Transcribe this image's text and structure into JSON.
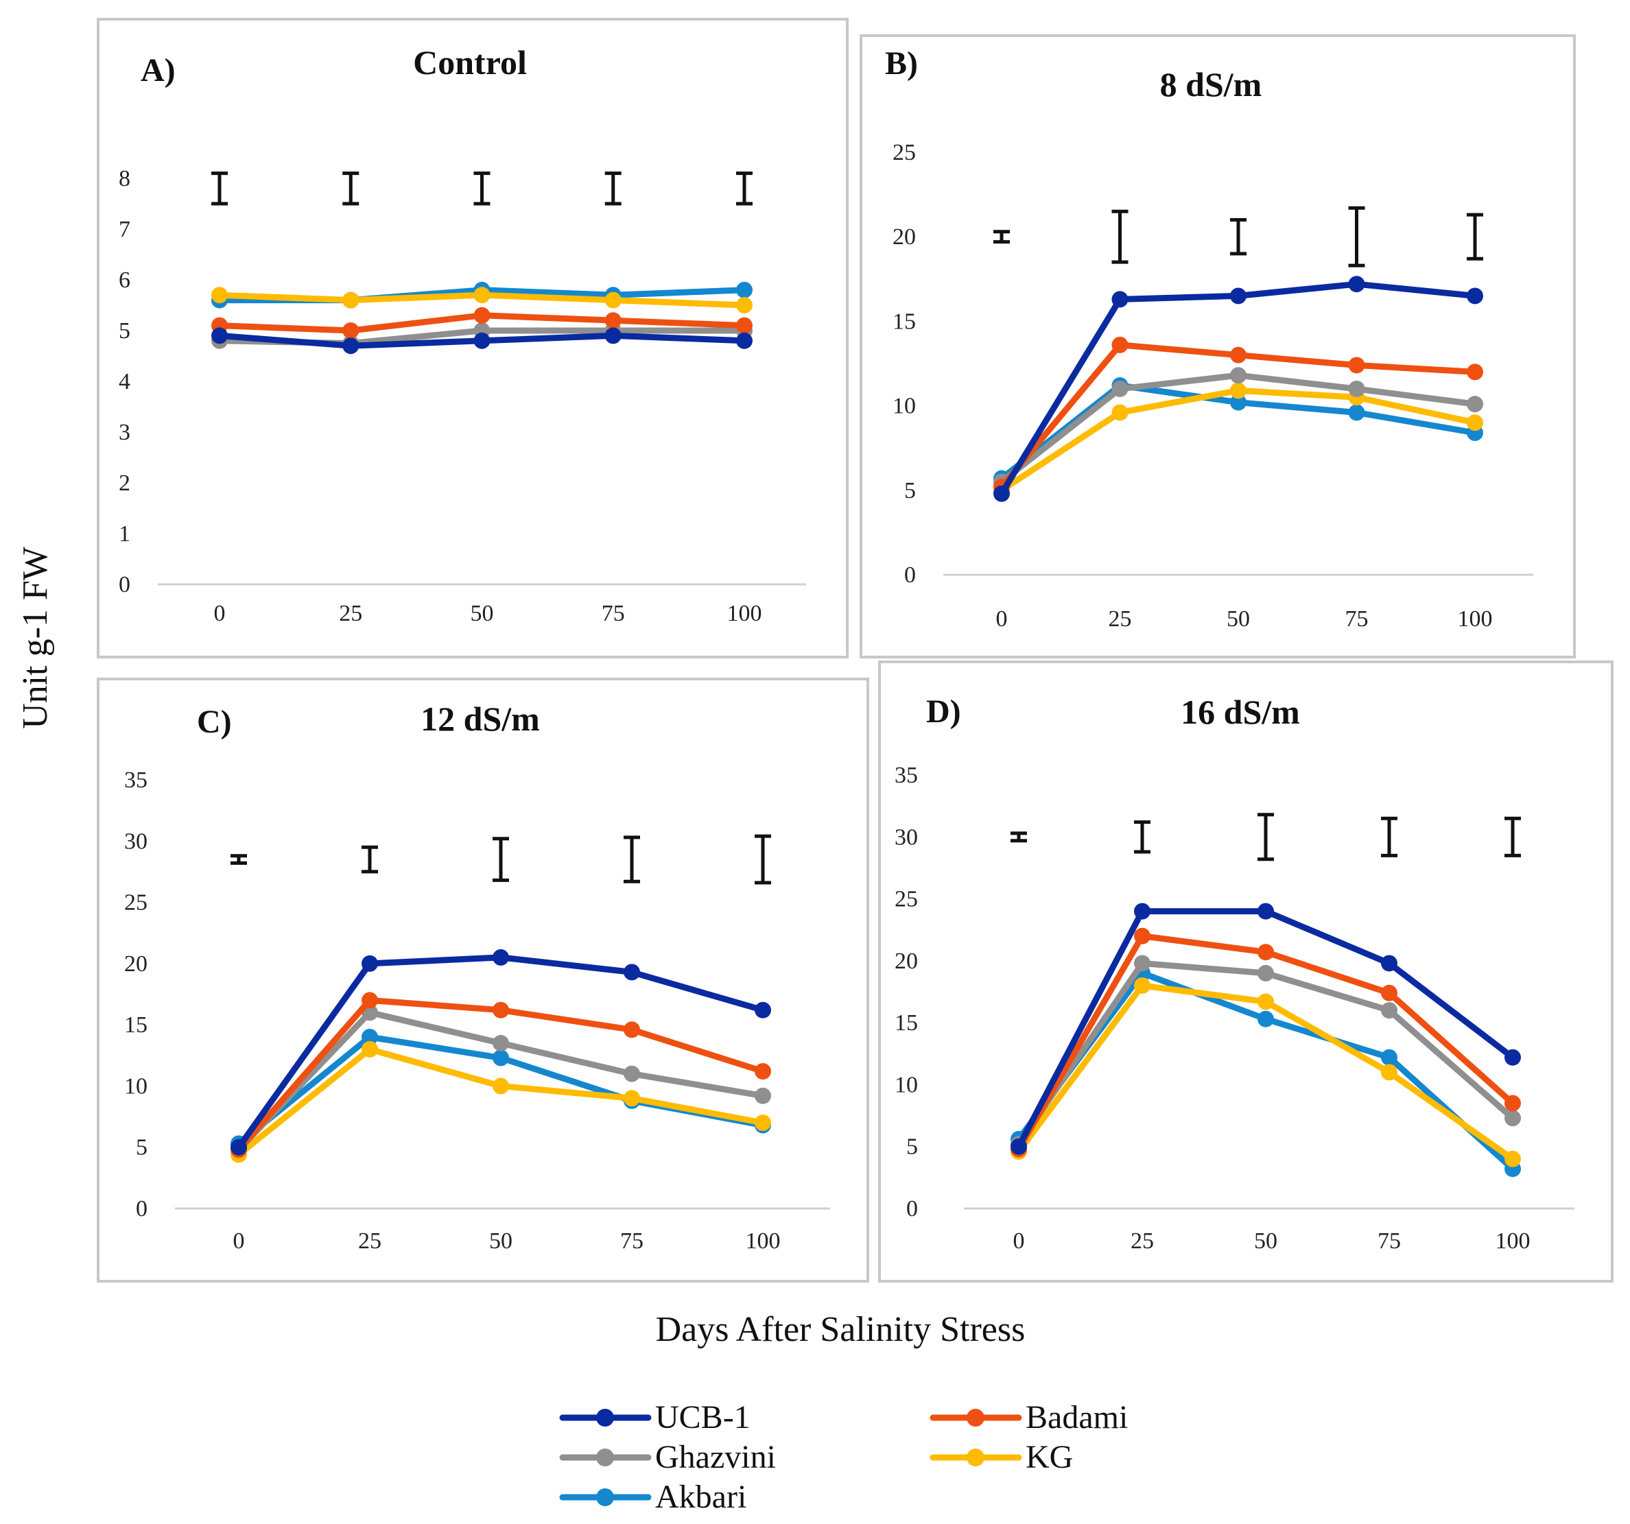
{
  "figure": {
    "ylabel": "Unit g-1 FW",
    "xlabel": "Days After Salinity Stress"
  },
  "series_meta": [
    {
      "name": "UCB-1",
      "color": "#0a2aa0"
    },
    {
      "name": "Badami",
      "color": "#ee5012"
    },
    {
      "name": "Ghazvini",
      "color": "#8f8f8f"
    },
    {
      "name": "KG",
      "color": "#ffbb00"
    },
    {
      "name": "Akbari",
      "color": "#1487cf"
    }
  ],
  "chart_data": [
    {
      "type": "line",
      "panel": "A)",
      "title": "Control",
      "x": [
        0,
        25,
        50,
        75,
        100
      ],
      "ylim": [
        0,
        8
      ],
      "yticks": [
        0,
        1,
        2,
        3,
        4,
        5,
        6,
        7,
        8
      ],
      "series": [
        {
          "name": "UCB-1",
          "values": [
            4.9,
            4.7,
            4.8,
            4.9,
            4.8
          ]
        },
        {
          "name": "Badami",
          "values": [
            5.1,
            5.0,
            5.3,
            5.2,
            5.1
          ]
        },
        {
          "name": "Ghazvini",
          "values": [
            4.8,
            4.75,
            5.0,
            5.0,
            5.0
          ]
        },
        {
          "name": "KG",
          "values": [
            5.7,
            5.6,
            5.7,
            5.6,
            5.5
          ]
        },
        {
          "name": "Akbari",
          "values": [
            5.6,
            5.6,
            5.8,
            5.7,
            5.8
          ]
        }
      ],
      "error_bars": [
        {
          "x": 0,
          "center": 7.8,
          "half": 0.3
        },
        {
          "x": 25,
          "center": 7.8,
          "half": 0.3
        },
        {
          "x": 50,
          "center": 7.8,
          "half": 0.3
        },
        {
          "x": 75,
          "center": 7.8,
          "half": 0.3
        },
        {
          "x": 100,
          "center": 7.8,
          "half": 0.3
        }
      ]
    },
    {
      "type": "line",
      "panel": "B)",
      "title": "8 dS/m",
      "x": [
        0,
        25,
        50,
        75,
        100
      ],
      "ylim": [
        0,
        25
      ],
      "yticks": [
        0,
        5,
        10,
        15,
        20,
        25
      ],
      "series": [
        {
          "name": "UCB-1",
          "values": [
            4.8,
            16.3,
            16.5,
            17.2,
            16.5
          ]
        },
        {
          "name": "Badami",
          "values": [
            5.2,
            13.6,
            13.0,
            12.4,
            12.0
          ]
        },
        {
          "name": "Ghazvini",
          "values": [
            5.5,
            11.0,
            11.8,
            11.0,
            10.1
          ]
        },
        {
          "name": "KG",
          "values": [
            5.0,
            9.6,
            10.9,
            10.5,
            9.0
          ]
        },
        {
          "name": "Akbari",
          "values": [
            5.7,
            11.2,
            10.2,
            9.6,
            8.4
          ]
        }
      ],
      "error_bars": [
        {
          "x": 0,
          "center": 20.0,
          "half": 0.3
        },
        {
          "x": 25,
          "center": 20.0,
          "half": 1.5
        },
        {
          "x": 50,
          "center": 20.0,
          "half": 1.0
        },
        {
          "x": 75,
          "center": 20.0,
          "half": 1.7
        },
        {
          "x": 100,
          "center": 20.0,
          "half": 1.3
        }
      ]
    },
    {
      "type": "line",
      "panel": "C)",
      "title": "12 dS/m",
      "x": [
        0,
        25,
        50,
        75,
        100
      ],
      "ylim": [
        0,
        35
      ],
      "yticks": [
        0,
        5,
        10,
        15,
        20,
        25,
        30,
        35
      ],
      "series": [
        {
          "name": "UCB-1",
          "values": [
            5.0,
            20.0,
            20.5,
            19.3,
            16.2
          ]
        },
        {
          "name": "Badami",
          "values": [
            4.8,
            17.0,
            16.2,
            14.6,
            11.2
          ]
        },
        {
          "name": "Ghazvini",
          "values": [
            4.8,
            16.0,
            13.5,
            11.0,
            9.2
          ]
        },
        {
          "name": "KG",
          "values": [
            4.4,
            13.0,
            10.0,
            9.0,
            7.0
          ]
        },
        {
          "name": "Akbari",
          "values": [
            5.3,
            14.0,
            12.3,
            8.8,
            6.8
          ]
        }
      ],
      "error_bars": [
        {
          "x": 0,
          "center": 28.5,
          "half": 0.3
        },
        {
          "x": 25,
          "center": 28.5,
          "half": 1.0
        },
        {
          "x": 50,
          "center": 28.5,
          "half": 1.7
        },
        {
          "x": 75,
          "center": 28.5,
          "half": 1.8
        },
        {
          "x": 100,
          "center": 28.5,
          "half": 1.9
        }
      ]
    },
    {
      "type": "line",
      "panel": "D)",
      "title": "16 dS/m",
      "x": [
        0,
        25,
        50,
        75,
        100
      ],
      "ylim": [
        0,
        35
      ],
      "yticks": [
        0,
        5,
        10,
        15,
        20,
        25,
        30,
        35
      ],
      "series": [
        {
          "name": "UCB-1",
          "values": [
            5.0,
            24.0,
            24.0,
            19.8,
            12.2
          ]
        },
        {
          "name": "Badami",
          "values": [
            4.8,
            22.0,
            20.7,
            17.4,
            8.5
          ]
        },
        {
          "name": "Ghazvini",
          "values": [
            5.2,
            19.8,
            19.0,
            16.0,
            7.3
          ]
        },
        {
          "name": "KG",
          "values": [
            4.6,
            18.0,
            16.7,
            11.0,
            4.0
          ]
        },
        {
          "name": "Akbari",
          "values": [
            5.6,
            19.0,
            15.3,
            12.2,
            3.2
          ]
        }
      ],
      "error_bars": [
        {
          "x": 0,
          "center": 30.0,
          "half": 0.3
        },
        {
          "x": 25,
          "center": 30.0,
          "half": 1.2
        },
        {
          "x": 50,
          "center": 30.0,
          "half": 1.8
        },
        {
          "x": 75,
          "center": 30.0,
          "half": 1.5
        },
        {
          "x": 100,
          "center": 30.0,
          "half": 1.5
        }
      ]
    }
  ]
}
